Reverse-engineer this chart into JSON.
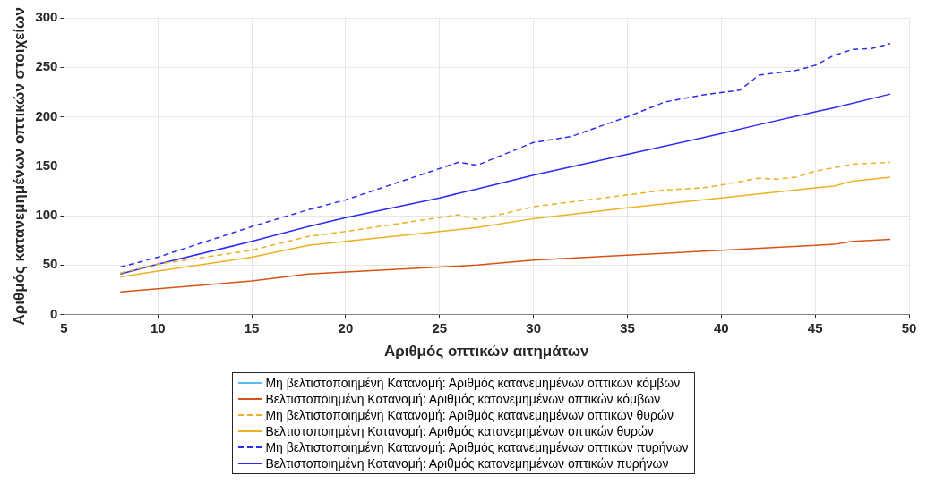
{
  "chart_data": {
    "type": "line",
    "xlabel": "Αριθμός οπτικών αιτημάτων",
    "ylabel": "Αριθμός κατανεμημένων οπτικών στοιχείων",
    "xlim": [
      5,
      50
    ],
    "xticks": [
      5,
      10,
      15,
      20,
      25,
      30,
      35,
      40,
      45,
      50
    ],
    "ylim": [
      0,
      300
    ],
    "yticks": [
      0,
      50,
      100,
      150,
      200,
      250,
      300
    ],
    "grid": true,
    "legend": "bottom",
    "marker": "none",
    "series": [
      {
        "name": "Μη βελτιστοποιημένη Κατανομή: Αριθμός κατανεμημένων οπτικών κόμβων",
        "color": "#4dbeee",
        "line_style": "solid"
      },
      {
        "name": "Βελτιστοποιημένη Κατανομή: Αριθμός κατανεμημένων οπτικών κόμβων",
        "color": "#d95319",
        "line_style": "solid",
        "x": [
          8,
          10,
          15,
          18,
          20,
          25,
          27,
          30,
          35,
          40,
          45,
          46,
          47,
          49
        ],
        "values": [
          23,
          26,
          34,
          41,
          43,
          48,
          50,
          55,
          60,
          65,
          70,
          71,
          74,
          76
        ]
      },
      {
        "name": "Μη βελτιστοποιημένη Κατανομή: Αριθμός κατανεμημένων οπτικών θυρών",
        "color": "#edb120",
        "line_style": "dashed",
        "x": [
          8,
          10,
          15,
          18,
          20,
          26,
          27,
          30,
          35,
          37,
          39,
          40,
          42,
          43,
          44,
          45,
          47,
          49
        ],
        "values": [
          42,
          51,
          65,
          79,
          84,
          101,
          96,
          109,
          121,
          126,
          128,
          131,
          138,
          137,
          139,
          145,
          152,
          154
        ]
      },
      {
        "name": "Βελτιστοποιημένη Κατανομή: Αριθμός κατανεμημένων οπτικών θυρών",
        "color": "#edb120",
        "line_style": "solid",
        "x": [
          8,
          10,
          15,
          18,
          20,
          25,
          27,
          30,
          35,
          40,
          45,
          46,
          47,
          49
        ],
        "values": [
          38,
          44,
          58,
          70,
          74,
          84,
          88,
          97,
          108,
          118,
          128,
          130,
          135,
          139
        ]
      },
      {
        "name": "Μη βελτιστοποιημένη Κατανομή: Αριθμός κατανεμημένων οπτικών πυρήνων",
        "color": "#2b2bff",
        "line_style": "dashed",
        "x": [
          8,
          10,
          15,
          18,
          20,
          26,
          27,
          30,
          32,
          35,
          37,
          39,
          41,
          42,
          44,
          45,
          46,
          47,
          48,
          49
        ],
        "values": [
          48,
          58,
          89,
          106,
          116,
          154,
          151,
          174,
          180,
          200,
          215,
          222,
          227,
          242,
          247,
          252,
          262,
          268,
          269,
          274
        ]
      },
      {
        "name": "Βελτιστοποιημένη Κατανομή: Αριθμός κατανεμημένων οπτικών πυρήνων",
        "color": "#2b2bff",
        "line_style": "solid",
        "x": [
          8,
          10,
          15,
          18,
          20,
          25,
          27,
          30,
          35,
          40,
          42,
          45,
          46,
          49
        ],
        "values": [
          41,
          51,
          74,
          89,
          98,
          118,
          127,
          141,
          162,
          183,
          192,
          205,
          209,
          223
        ]
      }
    ]
  }
}
